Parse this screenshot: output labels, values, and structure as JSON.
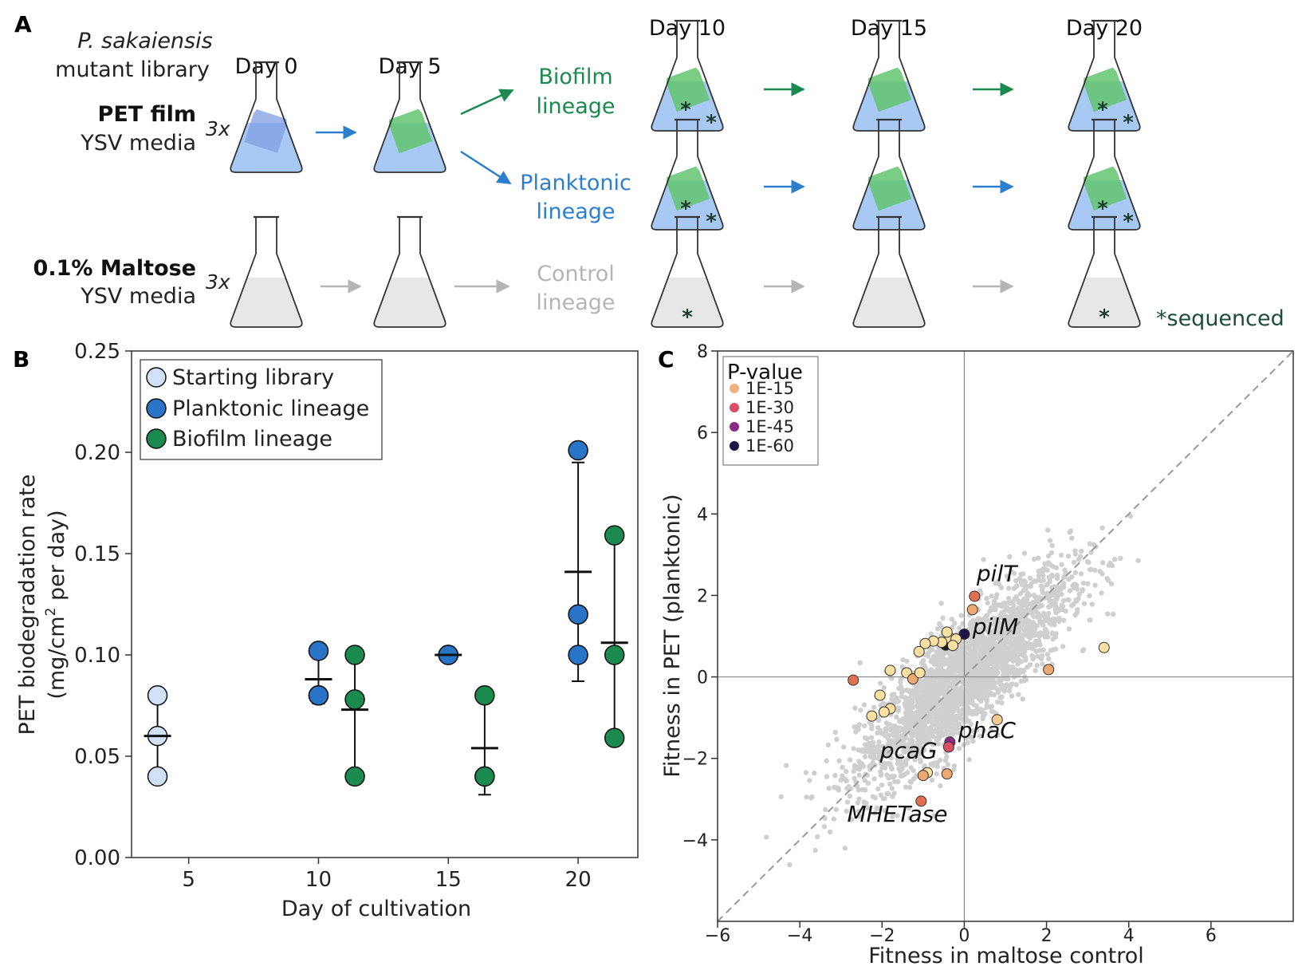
{
  "panel_labels": {
    "a": "A",
    "b": "B",
    "c": "C"
  },
  "panel_a": {
    "header_italic": "P. sakaiensis",
    "header_line2": "mutant library",
    "pet_condition": {
      "bold": "PET film",
      "media": "YSV media",
      "replicates": "3x"
    },
    "maltose_condition": {
      "bold": "0.1% Maltose",
      "media": "YSV media",
      "replicates": "3x"
    },
    "days": {
      "d0": "Day 0",
      "d5": "Day 5",
      "d10": "Day 10",
      "d15": "Day 15",
      "d20": "Day 20"
    },
    "biofilm": {
      "line1": "Biofilm",
      "line2": "lineage"
    },
    "planktonic": {
      "line1": "Planktonic",
      "line2": "lineage"
    },
    "control": {
      "line1": "Control",
      "line2": "lineage"
    },
    "star": "*",
    "sequenced_note": "*sequenced",
    "colors": {
      "biofilm": "#1a8a4f",
      "planktonic": "#2c7fcf",
      "control": "#b5b5b5",
      "media_blue": "#a9c9f5",
      "film_green": "#63c46f",
      "media_gray": "#e7e7e7"
    }
  },
  "chart_data": [
    {
      "type": "scatter",
      "title": "",
      "xlabel": "Day of cultivation",
      "ylabel_line1": "PET biodegradation rate",
      "ylabel_line2_pre": "(mg/cm",
      "ylabel_sup": "2",
      "ylabel_line2_post": " per day)",
      "xlim": [
        2.8,
        22.3
      ],
      "ylim": [
        0,
        0.25
      ],
      "xticks": [
        5,
        10,
        15,
        20
      ],
      "xtick_labels": [
        "5",
        "10",
        "15",
        "20"
      ],
      "yticks": [
        0,
        0.05,
        0.1,
        0.15,
        0.2,
        0.25
      ],
      "ytick_labels": [
        "0.00",
        "0.05",
        "0.10",
        "0.15",
        "0.20",
        "0.25"
      ],
      "legend_position": "top-left",
      "series": [
        {
          "name": "Starting library",
          "color": "#cfe0f7",
          "groups": [
            {
              "x": 3.8,
              "points": [
                0.08,
                0.06,
                0.04
              ],
              "mean": 0.06,
              "err_low": 0.04,
              "err_high": 0.08
            }
          ]
        },
        {
          "name": "Planktonic lineage",
          "color": "#2a74c8",
          "groups": [
            {
              "x": 10.0,
              "points": [
                0.102,
                0.08,
                0.08
              ],
              "mean": 0.088,
              "err_low": 0.076,
              "err_high": 0.1
            },
            {
              "x": 15.0,
              "points": [
                0.1,
                0.1,
                0.1
              ],
              "mean": 0.1,
              "err_low": 0.1,
              "err_high": 0.1
            },
            {
              "x": 20.0,
              "points": [
                0.201,
                0.12,
                0.1
              ],
              "mean": 0.141,
              "err_low": 0.087,
              "err_high": 0.195
            }
          ]
        },
        {
          "name": "Biofilm lineage",
          "color": "#1a8a4f",
          "groups": [
            {
              "x": 11.4,
              "points": [
                0.1,
                0.078,
                0.04
              ],
              "mean": 0.073,
              "err_low": 0.04,
              "err_high": 0.1
            },
            {
              "x": 16.4,
              "points": [
                0.08,
                0.04,
                0.04
              ],
              "mean": 0.054,
              "err_low": 0.031,
              "err_high": 0.08
            },
            {
              "x": 21.4,
              "points": [
                0.159,
                0.1,
                0.059
              ],
              "mean": 0.106,
              "err_low": 0.059,
              "err_high": 0.159
            }
          ]
        }
      ]
    },
    {
      "type": "scatter",
      "title": "",
      "xlabel": "Fitness in maltose control",
      "ylabel": "Fitness in PET (planktonic)",
      "xlim": [
        -6,
        8
      ],
      "ylim": [
        -6,
        8
      ],
      "xticks": [
        -6,
        -4,
        -2,
        0,
        2,
        4,
        6
      ],
      "xtick_labels": [
        "−6",
        "−4",
        "−2",
        "0",
        "2",
        "4",
        "6"
      ],
      "yticks": [
        -4,
        -2,
        0,
        2,
        4,
        6,
        8
      ],
      "ytick_labels": [
        "−4",
        "−2",
        "0",
        "2",
        "4",
        "6",
        "8"
      ],
      "diagonal": true,
      "zero_lines": true,
      "legend_position": "top-left",
      "legend_title": "P-value",
      "legend": [
        {
          "label": "1E-15",
          "color": "#f2b27f"
        },
        {
          "label": "1E-30",
          "color": "#d94f63"
        },
        {
          "label": "1E-45",
          "color": "#8a2b86"
        },
        {
          "label": "1E-60",
          "color": "#1f1446"
        }
      ],
      "background_points": {
        "color": "#cfcfcf",
        "n": 2600,
        "r_mean": 0.84,
        "r_sd": 1.28
      },
      "highlight_points": [
        {
          "x": 0.25,
          "y": 1.98,
          "color": "#e07050"
        },
        {
          "x": 0.2,
          "y": 1.65,
          "color": "#f0a872"
        },
        {
          "x": 0.0,
          "y": 1.05,
          "color": "#1f1446"
        },
        {
          "x": -0.45,
          "y": 0.78,
          "color": "#1a1a1a"
        },
        {
          "x": -0.35,
          "y": 0.95,
          "color": "#fbe0a2"
        },
        {
          "x": -0.55,
          "y": 0.85,
          "color": "#fbe0a2"
        },
        {
          "x": -0.2,
          "y": 0.93,
          "color": "#fbe0a2"
        },
        {
          "x": -0.42,
          "y": 1.1,
          "color": "#fbe0a2"
        },
        {
          "x": -0.28,
          "y": 0.77,
          "color": "#fbe0a2"
        },
        {
          "x": -0.75,
          "y": 0.88,
          "color": "#fbe0a2"
        },
        {
          "x": -0.95,
          "y": 0.82,
          "color": "#fbe0a2"
        },
        {
          "x": -1.1,
          "y": 0.62,
          "color": "#fbe0a2"
        },
        {
          "x": 3.4,
          "y": 0.72,
          "color": "#fbe0a2"
        },
        {
          "x": 2.05,
          "y": 0.18,
          "color": "#f0a872"
        },
        {
          "x": -2.7,
          "y": -0.08,
          "color": "#e07050"
        },
        {
          "x": -1.8,
          "y": 0.16,
          "color": "#fbe0a2"
        },
        {
          "x": -1.4,
          "y": 0.1,
          "color": "#fbe0a2"
        },
        {
          "x": -1.25,
          "y": -0.05,
          "color": "#f0a872"
        },
        {
          "x": -1.08,
          "y": 0.1,
          "color": "#fbe0a2"
        },
        {
          "x": -2.05,
          "y": -0.45,
          "color": "#fbe0a2"
        },
        {
          "x": -1.8,
          "y": -0.78,
          "color": "#fbe0a2"
        },
        {
          "x": -1.95,
          "y": -0.86,
          "color": "#fbe0a2"
        },
        {
          "x": -2.25,
          "y": -0.96,
          "color": "#fbe0a2"
        },
        {
          "x": 0.8,
          "y": -1.05,
          "color": "#f8c990"
        },
        {
          "x": -0.35,
          "y": -1.6,
          "color": "#8a2b86"
        },
        {
          "x": -0.38,
          "y": -1.72,
          "color": "#d94f63"
        },
        {
          "x": -0.9,
          "y": -2.35,
          "color": "#fbe0a2"
        },
        {
          "x": -1.0,
          "y": -2.42,
          "color": "#f0a872"
        },
        {
          "x": -0.42,
          "y": -2.38,
          "color": "#f0a872"
        },
        {
          "x": -1.05,
          "y": -3.05,
          "color": "#e07050"
        }
      ],
      "annotations": [
        {
          "text": "pilT",
          "x": 0.3,
          "y": 2.35
        },
        {
          "text": "pilM",
          "x": 0.2,
          "y": 1.05
        },
        {
          "text": "phaC",
          "x": -0.15,
          "y": -1.5
        },
        {
          "text": "pcaG",
          "x": -2.05,
          "y": -2.0
        },
        {
          "text": "MHETase",
          "x": -2.85,
          "y": -3.55
        }
      ]
    }
  ]
}
